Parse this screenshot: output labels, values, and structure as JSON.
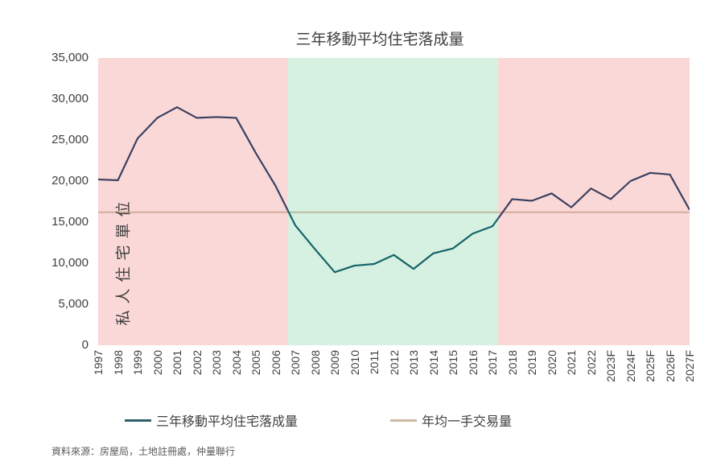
{
  "title": "三年移動平均住宅落成量",
  "source": "資料來源：房屋局，土地註冊處，仲量聯行",
  "legend": {
    "items": [
      {
        "label": "三年移動平均住宅落成量",
        "color": "#2E5F6B"
      },
      {
        "label": "年均一手交易量",
        "color": "#CDBBA4"
      }
    ]
  },
  "chart_data": {
    "type": "line",
    "title": "三年移動平均住宅落成量",
    "ylabel": "私人住宅單位",
    "xlabel": "",
    "ylim": [
      0,
      35000
    ],
    "grid": false,
    "legend_position": "bottom",
    "y_ticks": [
      {
        "value": 0,
        "label": "0"
      },
      {
        "value": 5000,
        "label": "5,000"
      },
      {
        "value": 10000,
        "label": "10,000"
      },
      {
        "value": 15000,
        "label": "15,000"
      },
      {
        "value": 20000,
        "label": "20,000"
      },
      {
        "value": 25000,
        "label": "25,000"
      },
      {
        "value": 30000,
        "label": "30,000"
      },
      {
        "value": 35000,
        "label": "35,000"
      }
    ],
    "categories": [
      "1997",
      "1998",
      "1999",
      "2000",
      "2001",
      "2002",
      "2003",
      "2004",
      "2005",
      "2006",
      "2007",
      "2008",
      "2009",
      "2010",
      "2011",
      "2012",
      "2013",
      "2014",
      "2015",
      "2016",
      "2017",
      "2018",
      "2019",
      "2020",
      "2021",
      "2022",
      "2023F",
      "2024F",
      "2025F",
      "2026F",
      "2027F"
    ],
    "series": [
      {
        "name": "三年移動平均住宅落成量",
        "values": [
          20200,
          20100,
          25200,
          27700,
          29000,
          27700,
          27800,
          27700,
          23400,
          19400,
          14600,
          11700,
          8900,
          9700,
          9900,
          11000,
          9300,
          11200,
          11800,
          13600,
          14500,
          17800,
          17600,
          18500,
          16800,
          19100,
          17800,
          20000,
          21000,
          20800,
          16500
        ]
      }
    ],
    "baseline": {
      "name": "年均一手交易量",
      "value": 16200,
      "color": "#CDBBA4"
    },
    "bands": [
      {
        "from": 0,
        "to": 9.63,
        "color": "#FBD8D8",
        "line_color": "#3A4160",
        "baseline_color": "#D3AC9E"
      },
      {
        "from": 9.63,
        "to": 20.29,
        "color": "#D6F0E1",
        "line_color": "#156467",
        "baseline_color": "#B9BC9E"
      },
      {
        "from": 20.29,
        "to": 30,
        "color": "#FBD8D8",
        "line_color": "#3A4160",
        "baseline_color": "#D3AC9E"
      }
    ]
  }
}
